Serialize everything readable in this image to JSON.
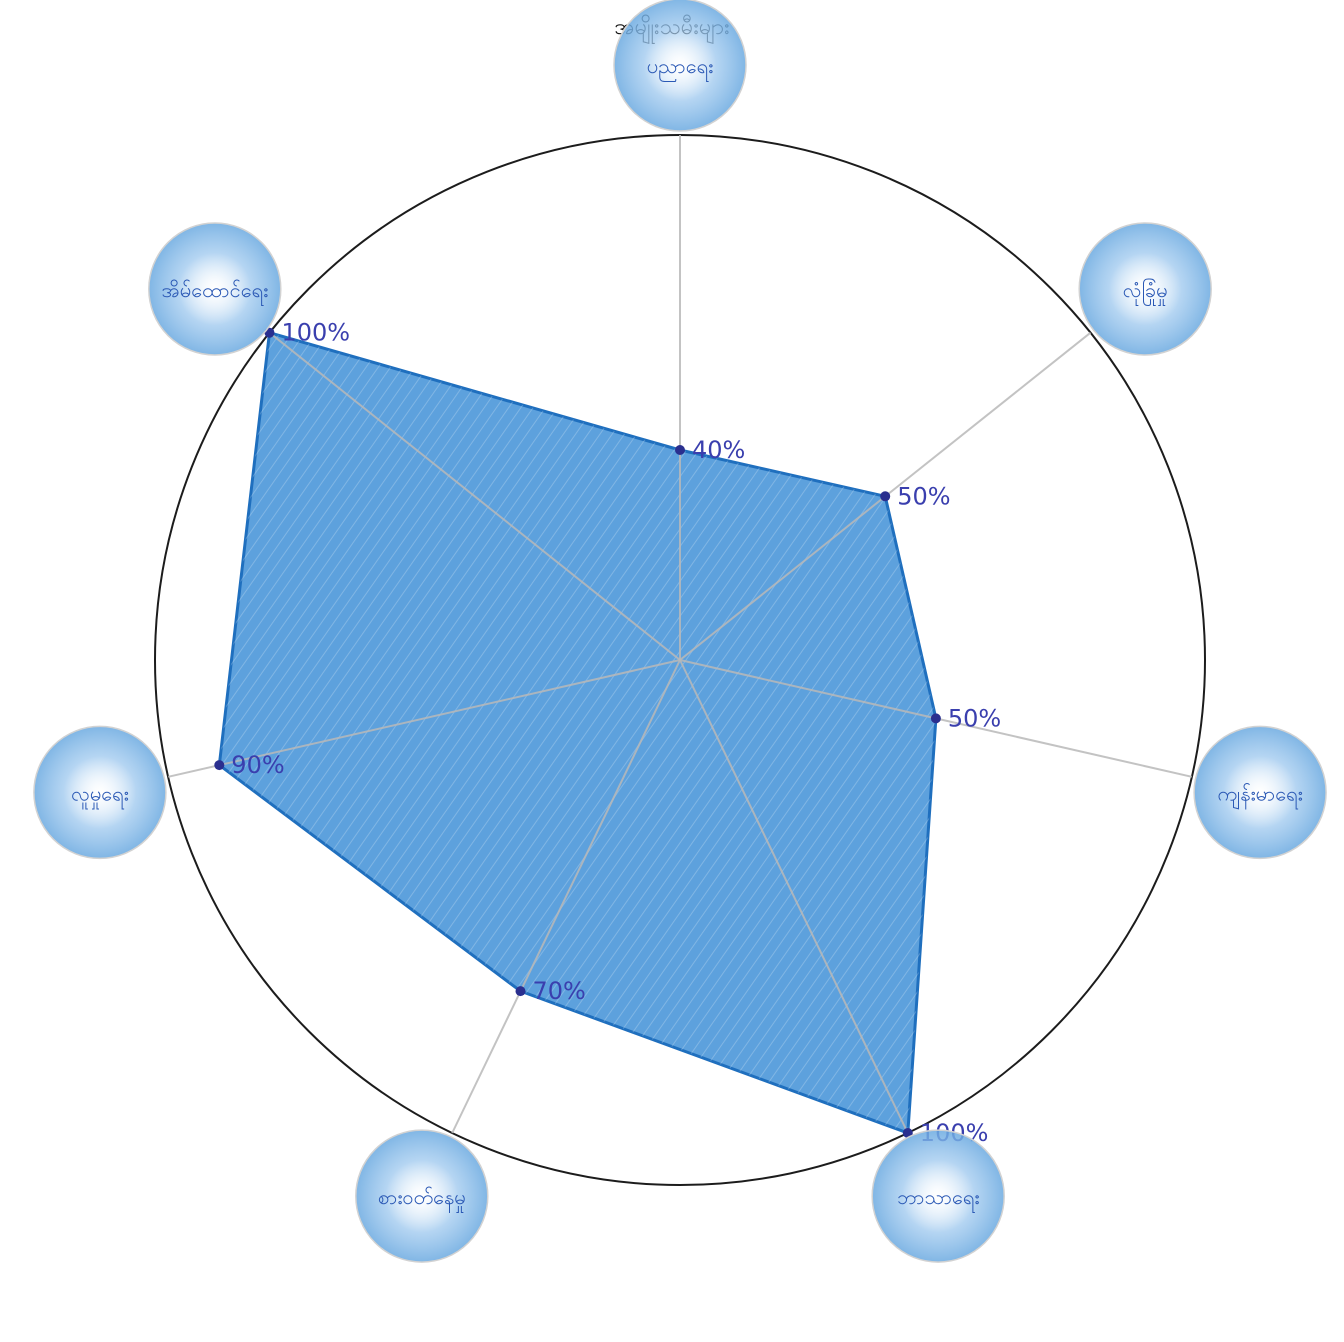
{
  "chart_data": {
    "type": "radar",
    "title": "အမျိုးသမီးများ",
    "max": 100,
    "grid": false,
    "categories": [
      "ပညာရေး",
      "လုံခြုံမှု",
      "ကျန်းမာရေး",
      "ဘာသာရေး",
      "စားဝတ်နေမှု",
      "လူမှုရေး",
      "အိမ်ထောင်ရေး"
    ],
    "values": [
      40,
      50,
      50,
      100,
      70,
      90,
      100
    ],
    "value_labels": [
      "40%",
      "50%",
      "50%",
      "100%",
      "70%",
      "90%",
      "100%"
    ]
  },
  "colors": {
    "fill": "#2f86d3",
    "fill_dark": "#1f6fbe",
    "outline": "#1c1c1c",
    "axis": "#b9b9b9",
    "label": "#3a3fae",
    "bubble": "#7fb6e6",
    "bubble_text": "#2b59b5"
  }
}
